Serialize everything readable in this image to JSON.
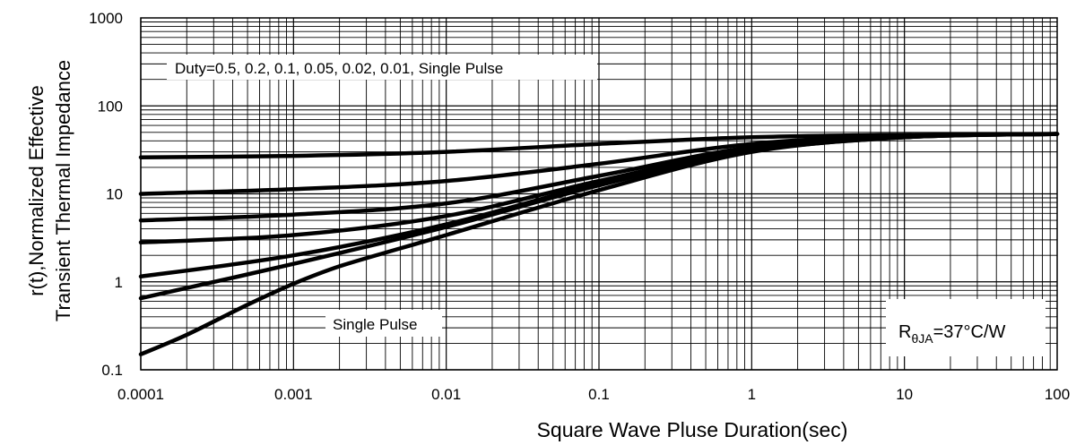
{
  "chart_data": {
    "type": "line",
    "xlabel": "Square Wave Pluse Duration(sec)",
    "ylabel_lines": [
      "r(t),Normalized Effective",
      "Transient Thermal Impedance"
    ],
    "x_scale": "log",
    "y_scale": "log",
    "xlim": [
      0.0001,
      100
    ],
    "ylim": [
      0.1,
      1000
    ],
    "x_ticks": [
      "0.0001",
      "0.001",
      "0.01",
      "0.1",
      "1",
      "10",
      "100"
    ],
    "y_ticks": [
      "0.1",
      "1",
      "10",
      "100",
      "1000"
    ],
    "grid": true,
    "annotations": {
      "duty": "Duty=0.5, 0.2, 0.1, 0.05, 0.02, 0.01, Single Pulse",
      "single_pulse": "Single Pulse",
      "rtheta_main": "R",
      "rtheta_sub": "θJA",
      "rtheta_value": "=37°C/W"
    },
    "series": [
      {
        "x": [
          0.0001,
          0.001,
          0.01,
          0.1,
          1,
          10,
          100
        ],
        "y": [
          26,
          27,
          30,
          37,
          44,
          47,
          48
        ]
      },
      {
        "x": [
          0.0001,
          0.001,
          0.01,
          0.1,
          1,
          10,
          100
        ],
        "y": [
          10,
          11.3,
          14,
          22,
          37,
          46,
          48
        ]
      },
      {
        "x": [
          0.0001,
          0.001,
          0.01,
          0.1,
          1,
          10,
          100
        ],
        "y": [
          5,
          5.8,
          7.8,
          16,
          34,
          45,
          48
        ]
      },
      {
        "x": [
          0.0001,
          0.001,
          0.01,
          0.1,
          1,
          10,
          100
        ],
        "y": [
          2.8,
          3.4,
          5.6,
          14,
          32,
          44.5,
          48
        ]
      },
      {
        "x": [
          0.0001,
          0.001,
          0.01,
          0.1,
          1,
          10,
          100
        ],
        "y": [
          1.15,
          2,
          4.5,
          13,
          31,
          44,
          48
        ]
      },
      {
        "x": [
          0.0001,
          0.001,
          0.01,
          0.1,
          1,
          10,
          100
        ],
        "y": [
          0.65,
          1.6,
          4.2,
          12.5,
          30.5,
          44,
          48
        ]
      },
      {
        "x": [
          0.0001,
          0.0002,
          0.0005,
          0.001,
          0.002,
          0.005,
          0.01,
          0.1,
          1,
          10,
          100
        ],
        "y": [
          0.15,
          0.25,
          0.55,
          0.95,
          1.5,
          2.4,
          3.4,
          11,
          30,
          44,
          48
        ]
      }
    ]
  }
}
